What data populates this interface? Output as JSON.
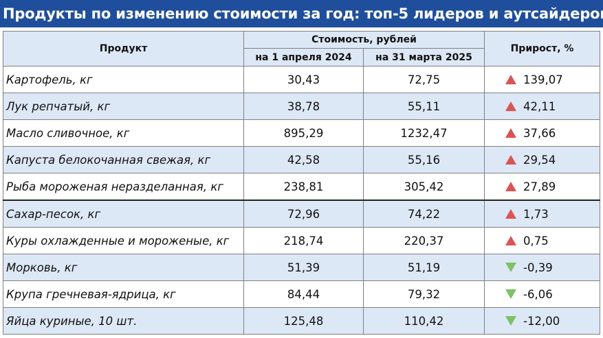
{
  "title": "Продукты по изменению стоимости за год: топ-5 лидеров и аутсайдеров",
  "header": {
    "product": "Продукт",
    "cost_group": "Стоимость, рублей",
    "date_a": "на 1 апреля 2024",
    "date_b": "на 31 марта 2025",
    "growth": "Прирост, %"
  },
  "colors": {
    "title_bg": "#1f4e9c",
    "stripe": "#dde8f6",
    "up": "#e05252",
    "down": "#7dc263"
  },
  "rows": [
    {
      "product": "Картофель, кг",
      "a": "30,43",
      "b": "72,75",
      "growth": "139,07",
      "dir": "up"
    },
    {
      "product": "Лук репчатый, кг",
      "a": "38,78",
      "b": "55,11",
      "growth": "42,11",
      "dir": "up"
    },
    {
      "product": "Масло сливочное, кг",
      "a": "895,29",
      "b": "1232,47",
      "growth": "37,66",
      "dir": "up"
    },
    {
      "product": "Капуста белокочанная свежая, кг",
      "a": "42,58",
      "b": "55,16",
      "growth": "29,54",
      "dir": "up"
    },
    {
      "product": "Рыба мороженая неразделанная, кг",
      "a": "238,81",
      "b": "305,42",
      "growth": "27,89",
      "dir": "up"
    },
    {
      "product": "Сахар-песок, кг",
      "a": "72,96",
      "b": "74,22",
      "growth": "1,73",
      "dir": "up"
    },
    {
      "product": "Куры охлажденные и мороженые, кг",
      "a": "218,74",
      "b": "220,37",
      "growth": "0,75",
      "dir": "up"
    },
    {
      "product": "Морковь, кг",
      "a": "51,39",
      "b": "51,19",
      "growth": "-0,39",
      "dir": "down"
    },
    {
      "product": "Крупа гречневая-ядрица, кг",
      "a": "84,44",
      "b": "79,32",
      "growth": "-6,06",
      "dir": "down"
    },
    {
      "product": "Яйца куриные, 10 шт.",
      "a": "125,48",
      "b": "110,42",
      "growth": "-12,00",
      "dir": "down"
    }
  ]
}
